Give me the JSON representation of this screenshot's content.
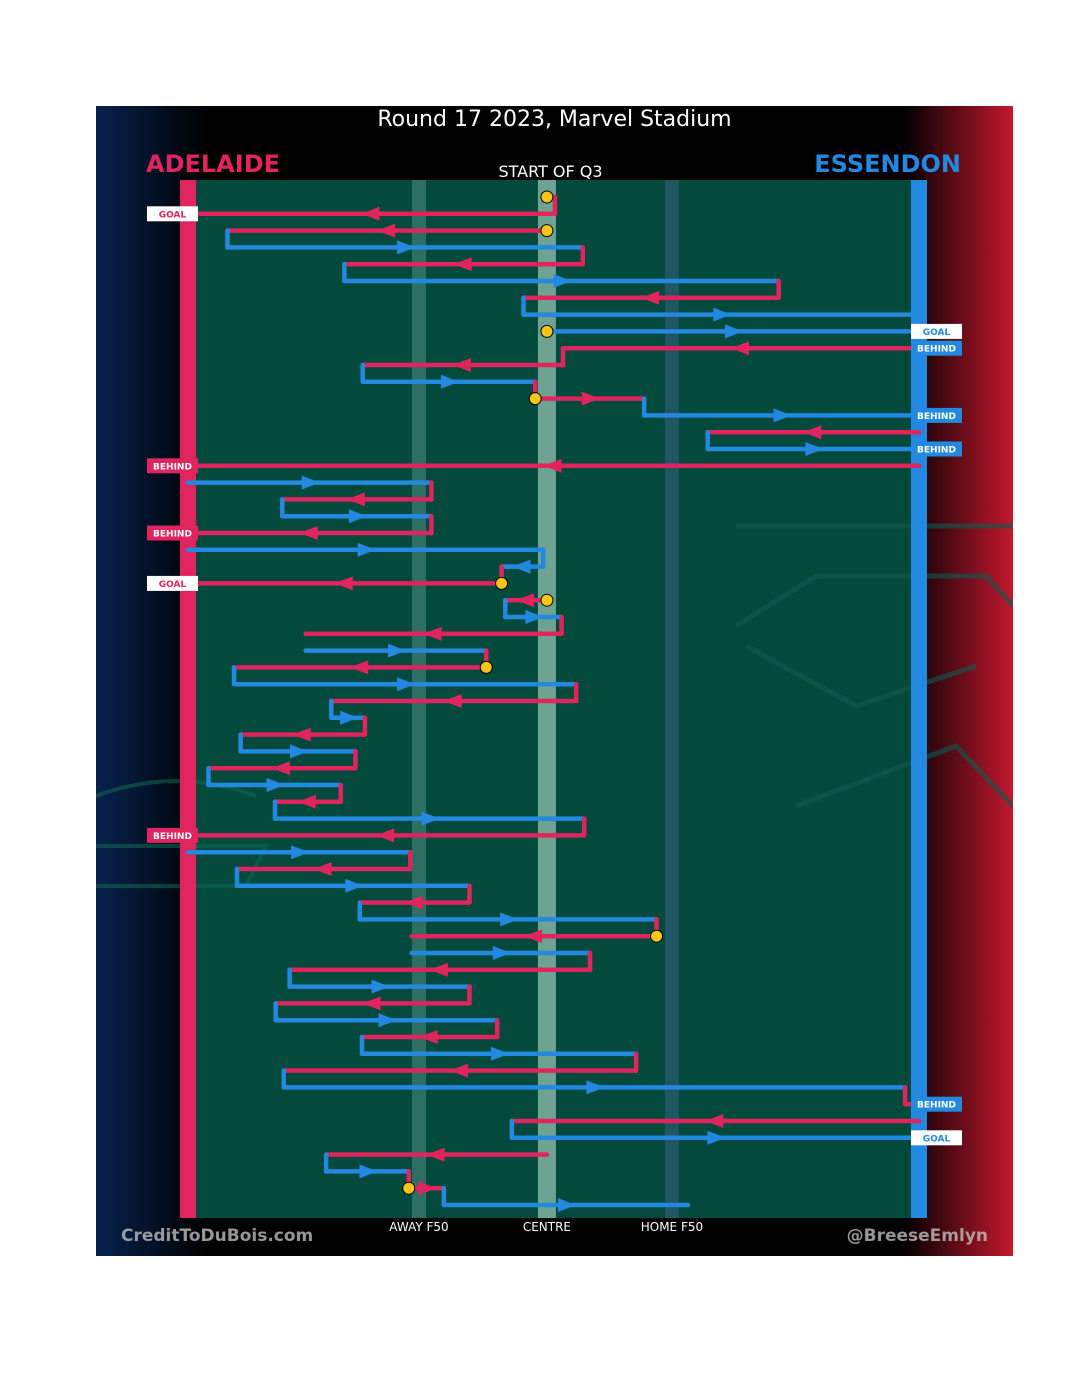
{
  "header": {
    "title": "Round 17 2023, Marvel Stadium",
    "home_team": "ADELAIDE",
    "away_team": "ESSENDON",
    "period_label": "START OF Q3"
  },
  "footer": {
    "credit_left": "CreditToDuBois.com",
    "credit_right": "@BreeseEmlyn"
  },
  "colors": {
    "adelaide": "#e0245e",
    "essendon": "#2288e0",
    "ground": "#034a3c",
    "centre_ring": "#f5c518"
  },
  "chart_data": {
    "type": "line",
    "title": "Round 17 2023, Marvel Stadium",
    "x_axis": {
      "description": "field position between the Adelaide goal (0) and the Essendon goal (100)",
      "range": [
        0,
        100
      ],
      "tick_labels": [
        {
          "x": 31.6,
          "label": "AWAY F50"
        },
        {
          "x": 49.1,
          "label": "CENTRE"
        },
        {
          "x": 66.2,
          "label": "HOME F50"
        }
      ]
    },
    "y_axis": {
      "description": "chains in order from the start of Q3 (top) down to the last chain",
      "range": [
        0,
        60
      ]
    },
    "legend": [
      {
        "team": "ADELAIDE",
        "color": "#e0245e",
        "position": "top-left"
      },
      {
        "team": "ESSENDON",
        "color": "#2288e0",
        "position": "top-right"
      }
    ],
    "chains": [
      {
        "id": 1,
        "start": "centre",
        "outcome": "GOAL",
        "side": "left",
        "segments": [
          {
            "team": "ADELAIDE",
            "row": 0,
            "from": 49.1,
            "to": 50.2
          },
          {
            "team": "ADELAIDE",
            "row": 1,
            "from": 50.2,
            "to": 0
          }
        ]
      },
      {
        "id": 2,
        "start": "centre",
        "outcome": "",
        "side": "",
        "segments": [
          {
            "team": "ADELAIDE",
            "row": 2,
            "from": 49.1,
            "to": 5.4
          },
          {
            "team": "ESSENDON",
            "row": 3,
            "from": 5.4,
            "to": 54.0
          },
          {
            "team": "ADELAIDE",
            "row": 4,
            "from": 54.0,
            "to": 21.4
          },
          {
            "team": "ESSENDON",
            "row": 5,
            "from": 21.4,
            "to": 80.8
          },
          {
            "team": "ADELAIDE",
            "row": 6,
            "from": 80.8,
            "to": 45.9
          },
          {
            "team": "ESSENDON",
            "row": 7,
            "from": 45.9,
            "to": 100
          }
        ]
      },
      {
        "id": 3,
        "start": "centre",
        "outcome": "GOAL",
        "side": "right",
        "segments": [
          {
            "team": "ESSENDON",
            "row": 8,
            "from": 49.1,
            "to": 100
          }
        ]
      },
      {
        "id": 4,
        "start": "",
        "outcome": "BEHIND",
        "side": "right",
        "segments": [
          {
            "team": "ADELAIDE",
            "row": 9,
            "from": 100,
            "to": 51.3
          },
          {
            "team": "ADELAIDE",
            "row": 10,
            "from": 51.3,
            "to": 23.9
          },
          {
            "team": "ESSENDON",
            "row": 11,
            "from": 23.9,
            "to": 47.5
          },
          {
            "team": "ADELAIDE",
            "row": 12,
            "from": 47.5,
            "to": 62.4
          },
          {
            "team": "ESSENDON",
            "row": 13,
            "from": 62.4,
            "to": 100
          }
        ]
      },
      {
        "id": 5,
        "start": "",
        "outcome": "BEHIND",
        "side": "right",
        "segments": [
          {
            "team": "ADELAIDE",
            "row": 14,
            "from": 100,
            "to": 71.1
          },
          {
            "team": "ESSENDON",
            "row": 15,
            "from": 71.1,
            "to": 100
          }
        ]
      },
      {
        "id": 6,
        "start": "",
        "outcome": "BEHIND",
        "side": "left",
        "segments": [
          {
            "team": "ADELAIDE",
            "row": 16,
            "from": 100,
            "to": 0
          }
        ]
      },
      {
        "id": 7,
        "start": "",
        "outcome": "BEHIND",
        "side": "left",
        "segments": [
          {
            "team": "ESSENDON",
            "row": 17,
            "from": 0,
            "to": 33.3
          },
          {
            "team": "ADELAIDE",
            "row": 18,
            "from": 33.3,
            "to": 12.9
          },
          {
            "team": "ESSENDON",
            "row": 19,
            "from": 12.9,
            "to": 33.3
          },
          {
            "team": "ADELAIDE",
            "row": 20,
            "from": 33.3,
            "to": 0
          }
        ]
      },
      {
        "id": 8,
        "start": "",
        "outcome": "GOAL",
        "side": "left",
        "segments": [
          {
            "team": "ESSENDON",
            "row": 21,
            "from": 0,
            "to": 48.6
          },
          {
            "team": "ESSENDON",
            "row": 22,
            "from": 48.6,
            "to": 42.9
          },
          {
            "team": "ADELAIDE",
            "row": 23,
            "from": 42.9,
            "to": 0
          }
        ]
      },
      {
        "id": 9,
        "start": "centre",
        "outcome": "",
        "side": "",
        "segments": [
          {
            "team": "ADELAIDE",
            "row": 24,
            "from": 49.1,
            "to": 43.4
          },
          {
            "team": "ESSENDON",
            "row": 25,
            "from": 43.4,
            "to": 51.1
          },
          {
            "team": "ADELAIDE",
            "row": 26,
            "from": 51.1,
            "to": 16.1
          }
        ]
      },
      {
        "id": 10,
        "start": "centre",
        "outcome": "",
        "side": "",
        "segments": [
          {
            "team": "ESSENDON",
            "row": 27,
            "from": 16.1,
            "to": 40.8
          },
          {
            "team": "ADELAIDE",
            "row": 28,
            "from": 40.8,
            "to": 6.3
          },
          {
            "team": "ESSENDON",
            "row": 29,
            "from": 6.3,
            "to": 53.1
          },
          {
            "team": "ADELAIDE",
            "row": 30,
            "from": 53.1,
            "to": 19.6
          },
          {
            "team": "ESSENDON",
            "row": 31,
            "from": 19.6,
            "to": 24.2
          },
          {
            "team": "ADELAIDE",
            "row": 32,
            "from": 24.2,
            "to": 7.2
          },
          {
            "team": "ESSENDON",
            "row": 33,
            "from": 7.2,
            "to": 22.9
          },
          {
            "team": "ADELAIDE",
            "row": 34,
            "from": 22.9,
            "to": 2.8
          },
          {
            "team": "ESSENDON",
            "row": 35,
            "from": 2.8,
            "to": 20.9
          },
          {
            "team": "ADELAIDE",
            "row": 36,
            "from": 20.9,
            "to": 11.9
          },
          {
            "team": "ESSENDON",
            "row": 37,
            "from": 11.9,
            "to": 54.2
          },
          {
            "team": "ADELAIDE",
            "row": 38,
            "from": 54.2,
            "to": 0
          }
        ]
      },
      {
        "id": 11,
        "start": "",
        "outcome": "BEHIND",
        "side": "left",
        "segments": [
          {
            "team": "ESSENDON",
            "row": 39,
            "from": 0,
            "to": 30.4
          },
          {
            "team": "ADELAIDE",
            "row": 40,
            "from": 30.4,
            "to": 6.7
          },
          {
            "team": "ESSENDON",
            "row": 41,
            "from": 6.7,
            "to": 38.5
          },
          {
            "team": "ADELAIDE",
            "row": 42,
            "from": 38.5,
            "to": 23.5
          },
          {
            "team": "ESSENDON",
            "row": 43,
            "from": 23.5,
            "to": 64.1
          },
          {
            "team": "ADELAIDE",
            "row": 44,
            "from": 64.1,
            "to": 30.6
          }
        ]
      },
      {
        "id": 12,
        "start": "centre",
        "outcome": "",
        "side": "",
        "segments": [
          {
            "team": "ESSENDON",
            "row": 45,
            "from": 30.6,
            "to": 55.0
          },
          {
            "team": "ADELAIDE",
            "row": 46,
            "from": 55.0,
            "to": 13.9
          },
          {
            "team": "ESSENDON",
            "row": 47,
            "from": 13.9,
            "to": 38.5
          },
          {
            "team": "ADELAIDE",
            "row": 48,
            "from": 38.5,
            "to": 12.0
          },
          {
            "team": "ESSENDON",
            "row": 49,
            "from": 12.0,
            "to": 42.3
          },
          {
            "team": "ADELAIDE",
            "row": 50,
            "from": 42.3,
            "to": 23.8
          },
          {
            "team": "ESSENDON",
            "row": 51,
            "from": 23.8,
            "to": 61.3
          },
          {
            "team": "ADELAIDE",
            "row": 52,
            "from": 61.3,
            "to": 13.1
          },
          {
            "team": "ESSENDON",
            "row": 53,
            "from": 13.1,
            "to": 98.1
          },
          {
            "team": "ADELAIDE",
            "row": 54,
            "from": 98.1,
            "to": 100
          }
        ]
      },
      {
        "id": 13,
        "start": "",
        "outcome": "BEHIND",
        "side": "right",
        "segments": [
          {
            "team": "ADELAIDE",
            "row": 55,
            "from": 100,
            "to": 44.3
          },
          {
            "team": "ESSENDON",
            "row": 56,
            "from": 44.3,
            "to": 100
          }
        ]
      },
      {
        "id": 14,
        "start": "centre",
        "outcome": "GOAL",
        "side": "right",
        "segments": [
          {
            "team": "ADELAIDE",
            "row": 57,
            "from": 49.1,
            "to": 18.9
          },
          {
            "team": "ESSENDON",
            "row": 58,
            "from": 18.9,
            "to": 30.2
          },
          {
            "team": "ADELAIDE",
            "row": 59,
            "from": 30.2,
            "to": 35.0
          },
          {
            "team": "ESSENDON",
            "row": 60,
            "from": 35.0,
            "to": 68.4
          }
        ]
      }
    ],
    "outcome_labels": [
      {
        "team": "ADELAIDE",
        "label": "GOAL",
        "row": 1
      },
      {
        "team": "ESSENDON",
        "label": "GOAL",
        "row": 8
      },
      {
        "team": "ESSENDON",
        "label": "BEHIND",
        "row": 9
      },
      {
        "team": "ESSENDON",
        "label": "BEHIND",
        "row": 13
      },
      {
        "team": "ESSENDON",
        "label": "BEHIND",
        "row": 15
      },
      {
        "team": "ADELAIDE",
        "label": "BEHIND",
        "row": 16
      },
      {
        "team": "ADELAIDE",
        "label": "BEHIND",
        "row": 20
      },
      {
        "team": "ADELAIDE",
        "label": "GOAL",
        "row": 23
      },
      {
        "team": "ADELAIDE",
        "label": "BEHIND",
        "row": 38
      },
      {
        "team": "ESSENDON",
        "label": "BEHIND",
        "row": 54
      },
      {
        "team": "ESSENDON",
        "label": "GOAL",
        "row": 56
      }
    ],
    "centre_bounce_rows": [
      0,
      2,
      8,
      12,
      23,
      24,
      28,
      44,
      59
    ]
  }
}
